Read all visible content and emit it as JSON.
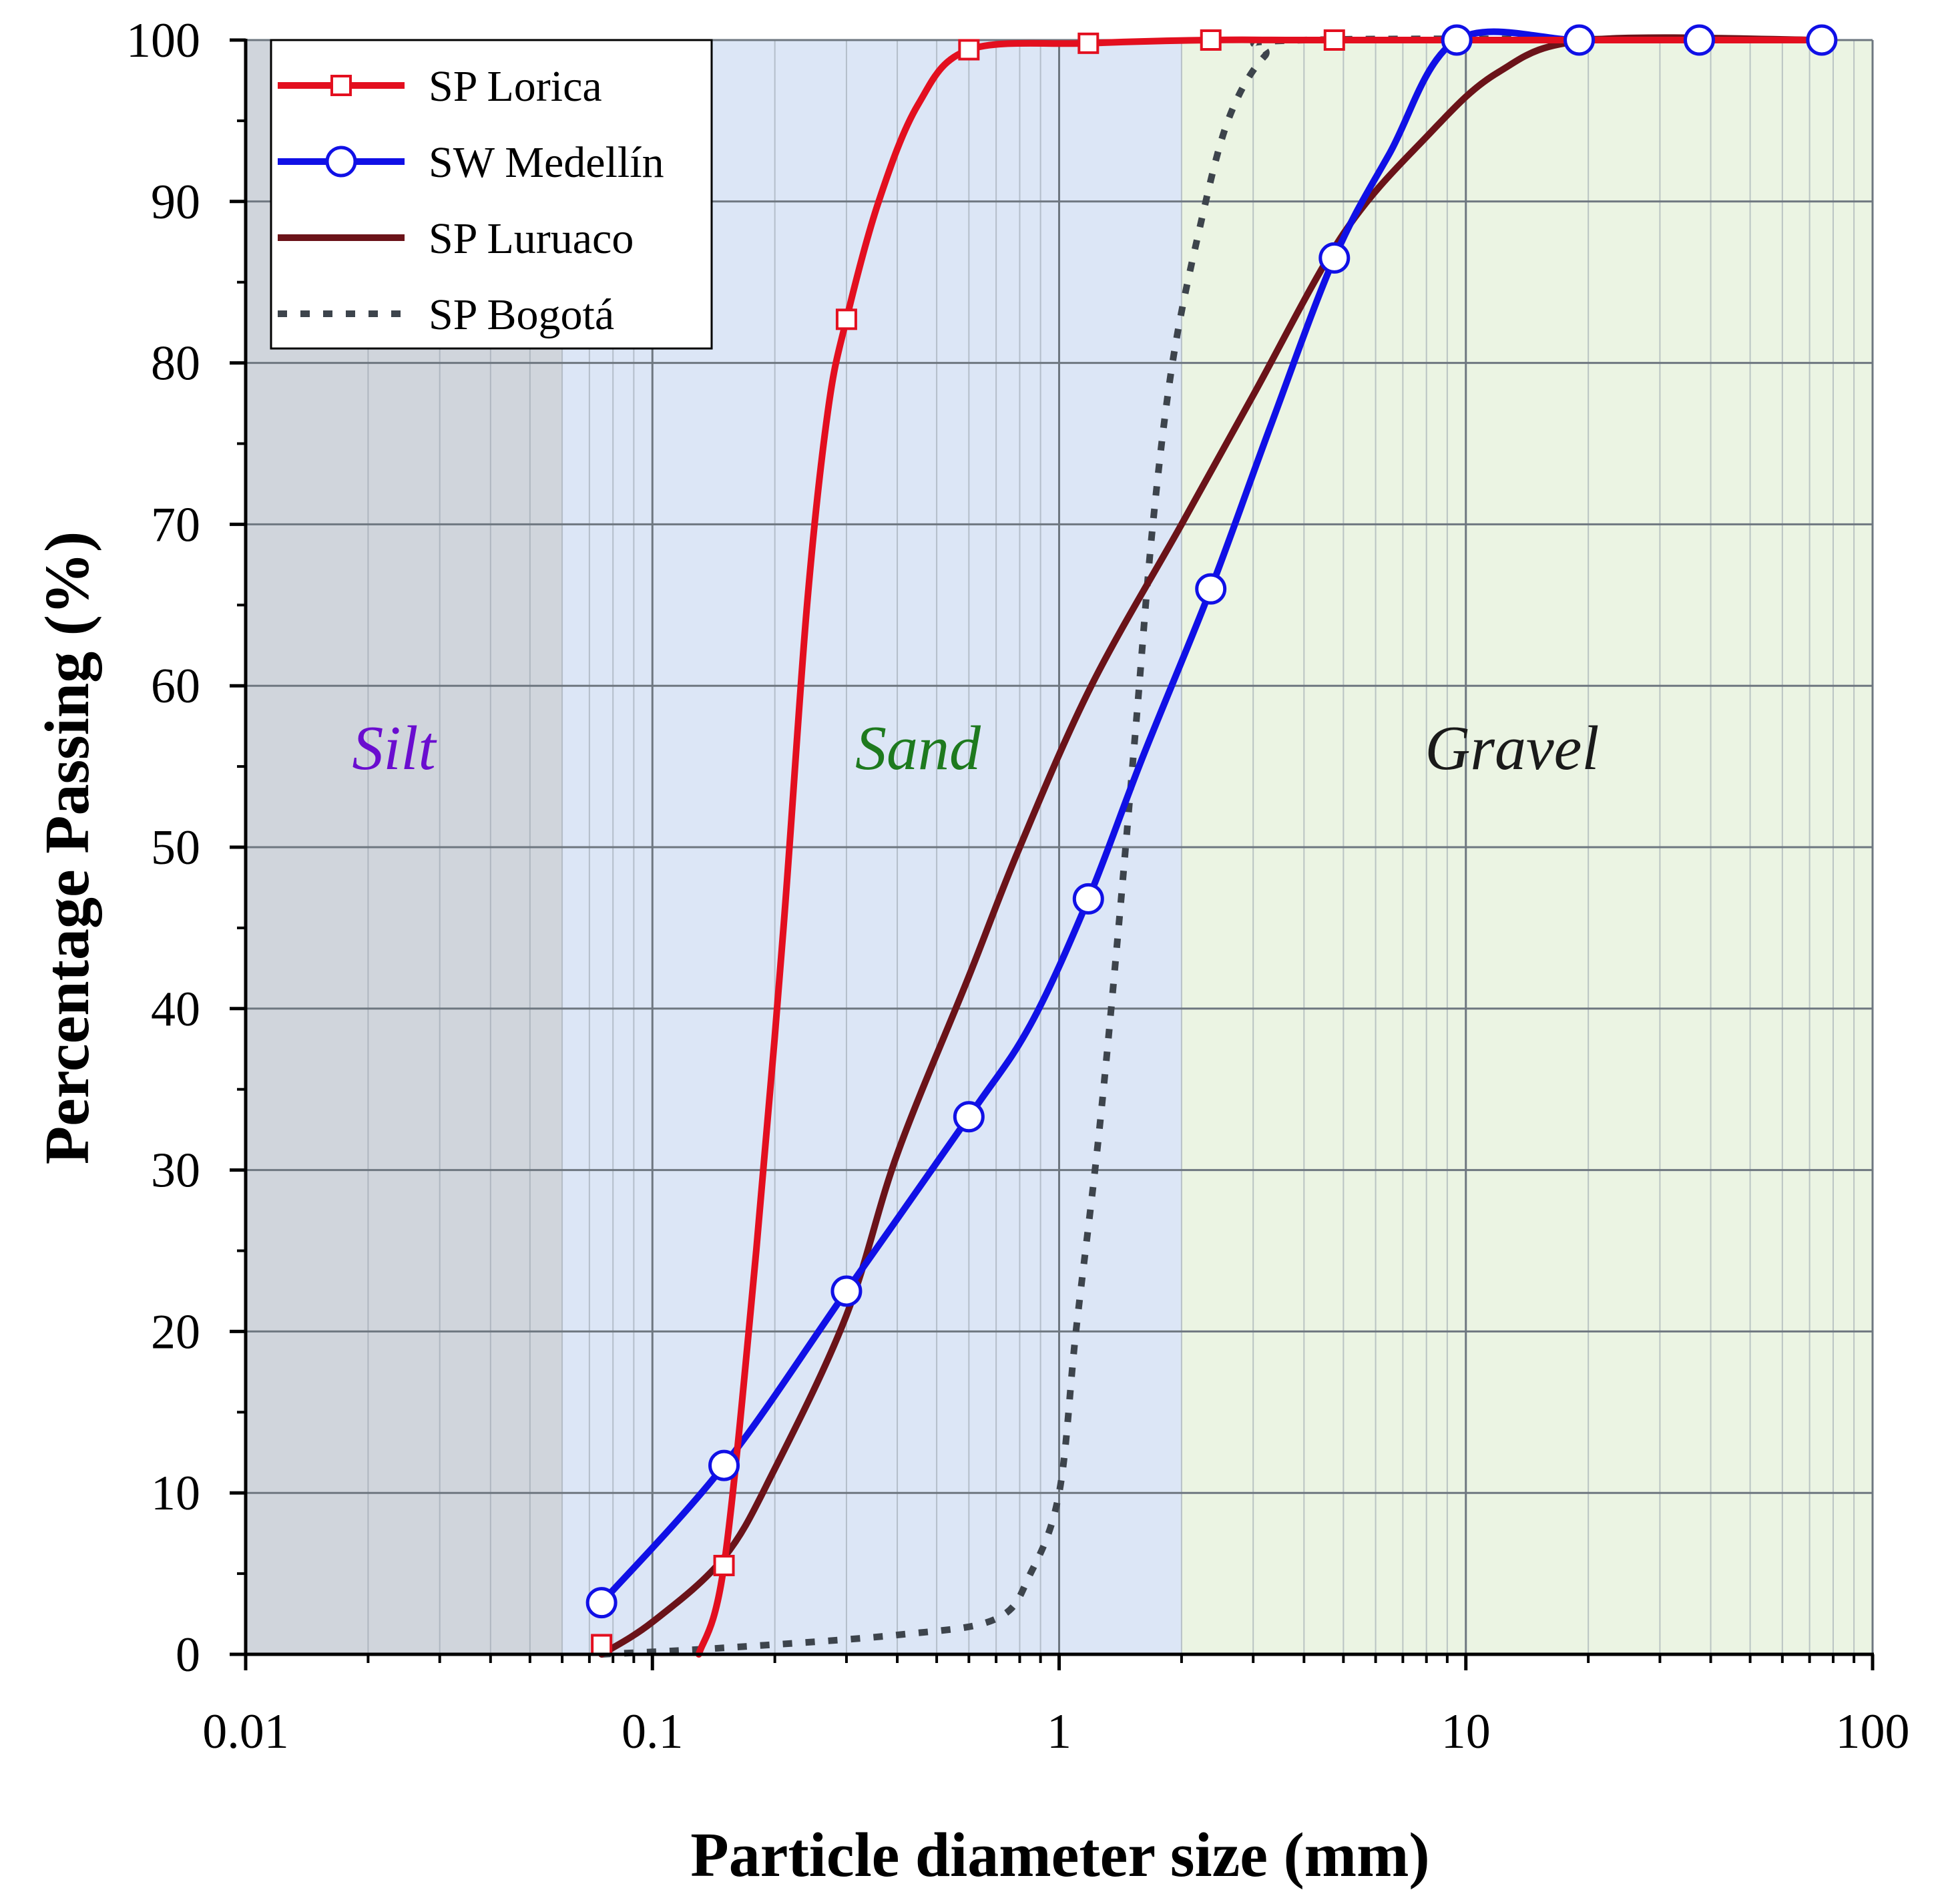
{
  "chart_data": {
    "type": "line",
    "title": "",
    "xlabel": "Particle diameter size (mm)",
    "ylabel": "Percentage Passing (%)",
    "xscale": "log",
    "xlim": [
      0.01,
      100
    ],
    "ylim": [
      0,
      100
    ],
    "x_tick_labels": [
      "0.01",
      "0.1",
      "1",
      "10",
      "100"
    ],
    "y_tick_labels": [
      "0",
      "10",
      "20",
      "30",
      "40",
      "50",
      "60",
      "70",
      "80",
      "90",
      "100"
    ],
    "grid": true,
    "legend_position": "top-left",
    "regions": [
      {
        "name": "Silt",
        "from": 0.01,
        "to": 0.06,
        "fill": "#d0d5dc",
        "label_color": "#6a0dcf"
      },
      {
        "name": "Sand",
        "from": 0.06,
        "to": 2,
        "fill": "#dce6f6",
        "label_color": "#1e7a1e"
      },
      {
        "name": "Gravel",
        "from": 2,
        "to": 100,
        "fill": "#ebf4e3",
        "label_color": "#1a1a1a"
      }
    ],
    "series": [
      {
        "name": "SP Lorica",
        "color": "#e30f1f",
        "style": "solid",
        "marker": "square",
        "points": [
          [
            0.075,
            0.6
          ],
          [
            0.15,
            5.5
          ],
          [
            0.3,
            82.7
          ],
          [
            0.6,
            99.4
          ],
          [
            1.18,
            99.8
          ],
          [
            2.36,
            100
          ],
          [
            4.75,
            100
          ]
        ],
        "curve": [
          [
            0.13,
            0
          ],
          [
            0.15,
            5.5
          ],
          [
            0.18,
            25
          ],
          [
            0.21,
            45
          ],
          [
            0.24,
            65
          ],
          [
            0.27,
            77
          ],
          [
            0.3,
            82.7
          ],
          [
            0.36,
            90
          ],
          [
            0.45,
            96
          ],
          [
            0.6,
            99.4
          ],
          [
            1.18,
            99.8
          ],
          [
            2.36,
            100
          ],
          [
            4.75,
            100
          ],
          [
            75,
            100
          ]
        ]
      },
      {
        "name": "SW Medellín",
        "color": "#1010e6",
        "style": "solid",
        "marker": "circle",
        "points": [
          [
            0.075,
            3.2
          ],
          [
            0.15,
            11.7
          ],
          [
            0.3,
            22.5
          ],
          [
            0.6,
            33.3
          ],
          [
            1.18,
            46.8
          ],
          [
            2.36,
            66.0
          ],
          [
            4.75,
            86.5
          ],
          [
            9.5,
            100
          ],
          [
            19,
            100
          ],
          [
            37.5,
            100
          ],
          [
            75,
            100
          ]
        ],
        "curve": [
          [
            0.075,
            3.2
          ],
          [
            0.15,
            11.7
          ],
          [
            0.3,
            22.5
          ],
          [
            0.6,
            33.3
          ],
          [
            0.85,
            39
          ],
          [
            1.18,
            46.8
          ],
          [
            1.6,
            55.5
          ],
          [
            2.36,
            66.0
          ],
          [
            3.3,
            76
          ],
          [
            4.75,
            86.5
          ],
          [
            6.5,
            93
          ],
          [
            9.5,
            100
          ],
          [
            19,
            100
          ],
          [
            37.5,
            100
          ],
          [
            75,
            100
          ]
        ]
      },
      {
        "name": "SP Luruaco",
        "color": "#6b1319",
        "style": "solid",
        "marker": "none",
        "points": [],
        "curve": [
          [
            0.075,
            0
          ],
          [
            0.1,
            2
          ],
          [
            0.15,
            6
          ],
          [
            0.2,
            11.5
          ],
          [
            0.3,
            21
          ],
          [
            0.4,
            31
          ],
          [
            0.6,
            42
          ],
          [
            0.8,
            50
          ],
          [
            1.2,
            60
          ],
          [
            2,
            70
          ],
          [
            3,
            78
          ],
          [
            5,
            88
          ],
          [
            8,
            94
          ],
          [
            12,
            98
          ],
          [
            20,
            100
          ],
          [
            75,
            100
          ]
        ]
      },
      {
        "name": "SP Bogotá",
        "color": "#3d444c",
        "style": "dotted",
        "marker": "none",
        "points": [],
        "curve": [
          [
            0.075,
            0
          ],
          [
            0.15,
            0.4
          ],
          [
            0.4,
            1.2
          ],
          [
            0.7,
            2.2
          ],
          [
            0.85,
            5
          ],
          [
            1.0,
            10
          ],
          [
            1.1,
            20
          ],
          [
            1.25,
            32
          ],
          [
            1.4,
            45
          ],
          [
            1.55,
            58
          ],
          [
            1.7,
            70
          ],
          [
            1.9,
            80
          ],
          [
            2.2,
            88
          ],
          [
            2.6,
            95
          ],
          [
            3.2,
            99
          ],
          [
            4,
            100
          ],
          [
            75,
            100
          ]
        ]
      }
    ]
  }
}
